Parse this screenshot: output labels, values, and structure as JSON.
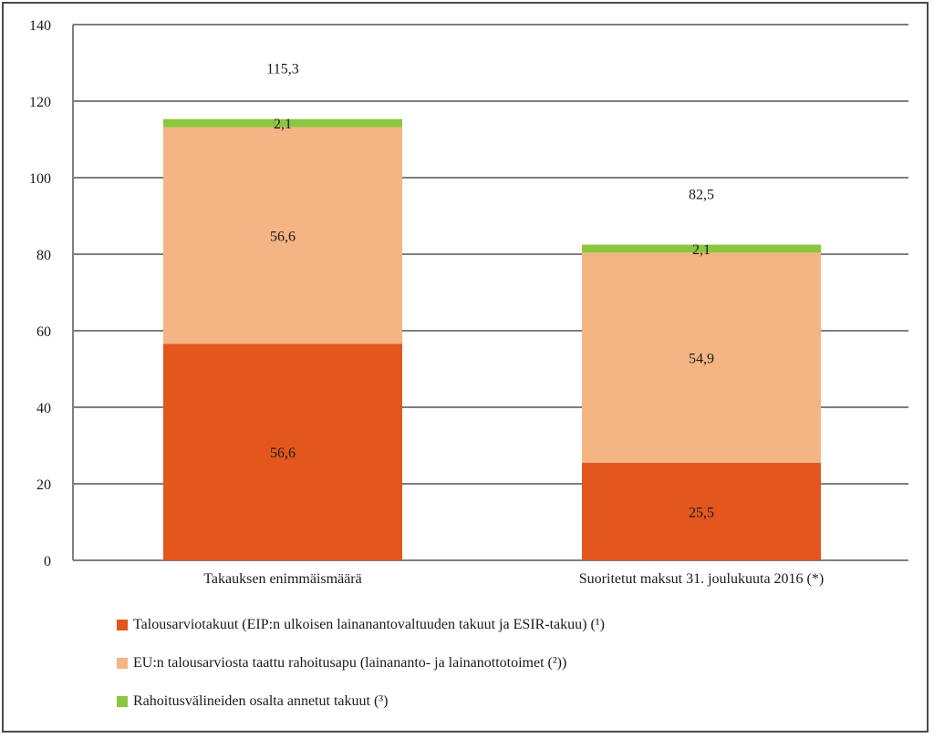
{
  "chart_data": {
    "type": "bar",
    "stacked": true,
    "categories": [
      "Takauksen enimmäismäärä",
      "Suoritetut maksut 31. joulukuuta 2016 (*)"
    ],
    "series": [
      {
        "name": "Talousarviotakuut (EIP:n ulkoisen lainanantovaltuuden takuut ja ESIR-takuu) (¹)",
        "values": [
          56.6,
          25.5
        ],
        "labels": [
          "56,6",
          "25,5"
        ],
        "color": "#e3561e"
      },
      {
        "name": "EU:n talousarviosta taattu rahoitusapu (lainananto- ja lainanottotoimet (²))",
        "values": [
          56.6,
          54.9
        ],
        "labels": [
          "56,6",
          "54,9"
        ],
        "color": "#f5b483"
      },
      {
        "name": "Rahoitusvälineiden osalta annetut takuut (³)",
        "values": [
          2.1,
          2.1
        ],
        "labels": [
          "2,1",
          "2,1"
        ],
        "color": "#8cc63f"
      }
    ],
    "totals": [
      115.3,
      82.5
    ],
    "total_labels": [
      "115,3",
      "82,5"
    ],
    "ylim": [
      0,
      140
    ],
    "yticks": [
      0,
      20,
      40,
      60,
      80,
      100,
      120,
      140
    ],
    "ytick_labels": [
      "0",
      "20",
      "40",
      "60",
      "80",
      "100",
      "120",
      "140"
    ],
    "grid": true,
    "legend_position": "bottom-left",
    "gridline_color": "#7f7f7f"
  }
}
